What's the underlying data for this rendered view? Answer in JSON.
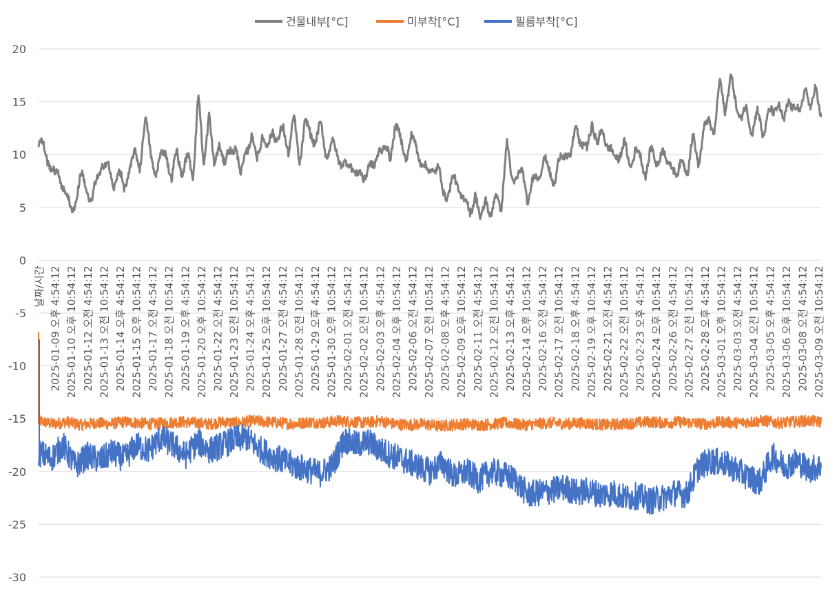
{
  "chart_data": {
    "type": "line",
    "title": "",
    "xlabel": "",
    "ylabel": "",
    "ylim": [
      -30,
      20
    ],
    "yticks": [
      "20",
      "15",
      "10",
      "5",
      "0",
      "-5",
      "-10",
      "-15",
      "-20",
      "-25",
      "-30"
    ],
    "grid": true,
    "legend_position": "top",
    "x_axis_crosses_at": 0,
    "x_first_label": "날짜/시간",
    "x_labels": [
      "2025-01-09 오후 4:54:12",
      "2025-01-10 오후 10:54:12",
      "2025-01-12 오전 4:54:12",
      "2025-01-13 오전 10:54:12",
      "2025-01-14 오후 4:54:12",
      "2025-01-15 오후 10:54:12",
      "2025-01-17 오전 4:54:12",
      "2025-01-18 오전 10:54:12",
      "2025-01-19 오후 4:54:12",
      "2025-01-20 오후 10:54:12",
      "2025-01-22 오전 4:54:12",
      "2025-01-23 오전 10:54:12",
      "2025-01-24 오후 4:54:12",
      "2025-01-25 오후 10:54:12",
      "2025-01-27 오전 4:54:12",
      "2025-01-28 오전 10:54:12",
      "2025-01-29 오후 4:54:12",
      "2025-01-30 오후 10:54:12",
      "2025-02-01 오전 4:54:12",
      "2025-02-02 오전 10:54:12",
      "2025-02-03 오후 4:54:12",
      "2025-02-04 오후 10:54:12",
      "2025-02-06 오전 4:54:12",
      "2025-02-07 오전 10:54:12",
      "2025-02-08 오후 4:54:12",
      "2025-02-09 오후 10:54:12",
      "2025-02-11 오전 4:54:12",
      "2025-02-12 오전 10:54:12",
      "2025-02-13 오후 4:54:12",
      "2025-02-14 오후 10:54:12",
      "2025-02-16 오전 4:54:12",
      "2025-02-17 오전 10:54:12",
      "2025-02-18 오후 4:54:12",
      "2025-02-19 오후 10:54:12",
      "2025-02-21 오전 4:54:12",
      "2025-02-22 오전 10:54:12",
      "2025-02-23 오후 4:54:12",
      "2025-02-24 오후 10:54:12",
      "2025-02-26 오전 4:54:12",
      "2025-02-27 오전 10:54:12",
      "2025-02-28 오후 4:54:12",
      "2025-03-01 오후 10:54:12",
      "2025-03-03 오전 4:54:12",
      "2025-03-04 오전 10:54:12",
      "2025-03-05 오후 4:54:12",
      "2025-03-06 오후 10:54:12",
      "2025-03-08 오전 4:54:12",
      "2025-03-09 오전 10:54:12"
    ],
    "series": [
      {
        "name": "건물내부[°C]",
        "color": "#7f7f7f",
        "values": [
          11,
          10.5,
          9.5,
          7.8,
          8.2,
          6.5,
          4.5,
          6,
          7.8,
          7,
          5.5,
          7.5,
          9.5,
          8.6,
          7.2,
          8.5,
          6.5,
          8.8,
          9.8,
          9,
          13.5,
          10,
          8.5,
          9.5,
          10.5,
          7.5,
          10.2,
          8.5,
          9.5,
          8.2,
          15.8,
          8.5,
          14.5,
          8.2,
          11.5,
          9,
          10.2,
          11.2,
          7.5,
          10.8,
          11.5,
          9.5,
          12.2,
          10,
          12.8,
          11,
          12.5,
          10.5,
          13.2,
          9.5,
          12.8,
          12,
          11.5,
          12.5,
          10.2,
          11,
          10,
          9.5,
          8.5,
          9.2,
          8,
          7.5,
          9.5,
          8.2,
          11,
          10.5,
          9.5,
          13.2,
          11,
          10,
          11.5,
          10.5,
          9.5,
          8,
          9,
          8.5,
          6.5,
          6.5,
          7.5,
          7,
          5.5,
          4.5,
          6.5,
          3.2,
          6.5,
          3.5,
          6.5,
          5.2,
          10.8,
          8,
          7.5,
          8.5,
          5.5,
          7.5,
          8.5,
          9.2,
          8.5,
          7.5,
          9.5,
          10.5,
          9.5,
          13,
          11,
          10.2,
          13.5,
          10.5,
          12.5,
          10.8,
          9.5,
          10.2,
          10.8,
          9,
          10.5,
          9.5,
          8.5,
          10.2,
          9.2,
          10.5,
          9,
          9.5,
          7.5,
          9.8,
          8.5,
          11.5,
          9.5,
          12,
          13.5,
          12.2,
          16.8,
          14.5,
          17,
          15,
          13.5,
          14,
          12.5,
          13.8,
          12,
          14,
          13.5,
          15.5,
          12.5,
          15.5,
          14.5,
          13.5,
          17.2,
          13.5,
          17,
          13.5
        ]
      },
      {
        "name": "미부착[°C]",
        "color": "#ed7d31",
        "values": [
          -15.2,
          -15.5,
          -15.3,
          -15.6,
          -15.4,
          -15.5,
          -15.3,
          -15.4,
          -15.5,
          -15.4,
          -15.3,
          -15.4,
          -15.5,
          -15.3,
          -15.4,
          -15.2,
          -15.3,
          -15.4,
          -15.5,
          -15.3,
          -15.4,
          -15.2,
          -15.3,
          -15.4,
          -15.2,
          -15.5,
          -15.6,
          -15.5,
          -15.7,
          -15.6,
          -15.5,
          -15.6,
          -15.5,
          -15.4,
          -15.6,
          -15.5,
          -15.4,
          -15.5,
          -15.4,
          -15.5,
          -15.6,
          -15.5,
          -15.4,
          -15.3,
          -15.4,
          -15.3,
          -15.4,
          -15.5,
          -15.3,
          -15.4,
          -15.3,
          -15.2,
          -15.4,
          -15.3,
          -15.2,
          -15.3
        ]
      },
      {
        "name": "필름부착[°C]",
        "color": "#4472c4",
        "values": [
          -18.2,
          -18.8,
          -17.5,
          -19.5,
          -18.5,
          -19,
          -18.2,
          -18.8,
          -17.5,
          -18,
          -16.8,
          -17.5,
          -18.5,
          -17.2,
          -18,
          -17.5,
          -17,
          -16.8,
          -17.8,
          -18.5,
          -19,
          -19.5,
          -19.8,
          -20.2,
          -19.5,
          -17,
          -17.5,
          -17.2,
          -18,
          -18.5,
          -19,
          -19.5,
          -20,
          -19.2,
          -20.5,
          -20,
          -20.8,
          -20,
          -20.3,
          -20.8,
          -22.2,
          -22,
          -21.8,
          -21.5,
          -22,
          -21.8,
          -22.2,
          -22,
          -22.5,
          -22.3,
          -22.8,
          -22.5,
          -22,
          -22.2,
          -19.5,
          -19,
          -19.2,
          -19.8,
          -20.5,
          -21,
          -18.5,
          -19.5,
          -19,
          -19.8,
          -19.5
        ]
      }
    ]
  }
}
